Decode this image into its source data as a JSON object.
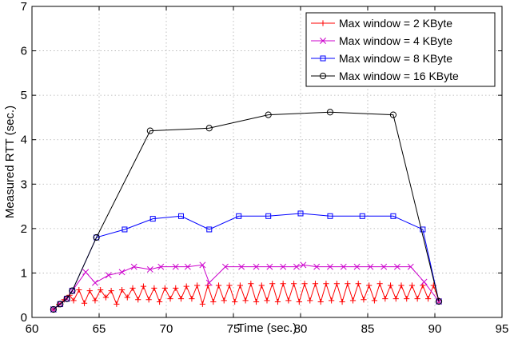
{
  "chart_data": {
    "type": "line",
    "title": "",
    "xlabel": "Time (sec.)",
    "ylabel": "Measured RTT (sec.)",
    "xlim": [
      60,
      95
    ],
    "ylim": [
      0,
      7
    ],
    "xticks": [
      60,
      65,
      70,
      75,
      80,
      85,
      90,
      95
    ],
    "yticks": [
      0,
      1,
      2,
      3,
      4,
      5,
      6,
      7
    ],
    "grid": true,
    "legend_position": "top-right",
    "series": [
      {
        "name": "Max window = 2 KByte",
        "color": "#ff0000",
        "marker": "plus",
        "x": [
          61.6,
          62.0,
          62.4,
          62.8,
          63.1,
          63.5,
          63.9,
          64.3,
          64.7,
          65.1,
          65.5,
          65.9,
          66.3,
          66.7,
          67.1,
          67.5,
          67.9,
          68.3,
          68.7,
          69.1,
          69.5,
          69.9,
          70.3,
          70.7,
          71.1,
          71.5,
          71.9,
          72.3,
          72.7,
          73.1,
          73.5,
          73.9,
          74.3,
          74.7,
          75.1,
          75.5,
          75.9,
          76.3,
          76.7,
          77.1,
          77.5,
          77.9,
          78.3,
          78.7,
          79.1,
          79.5,
          79.9,
          80.3,
          80.7,
          81.1,
          81.5,
          81.9,
          82.3,
          82.7,
          83.1,
          83.5,
          83.9,
          84.3,
          84.7,
          85.1,
          85.5,
          85.9,
          86.3,
          86.7,
          87.1,
          87.5,
          87.9,
          88.3,
          88.7,
          89.1,
          89.5,
          89.9,
          90.3
        ],
        "y": [
          0.18,
          0.29,
          0.4,
          0.5,
          0.38,
          0.62,
          0.32,
          0.6,
          0.38,
          0.62,
          0.45,
          0.6,
          0.3,
          0.62,
          0.45,
          0.66,
          0.4,
          0.7,
          0.4,
          0.66,
          0.35,
          0.66,
          0.42,
          0.66,
          0.42,
          0.7,
          0.42,
          0.72,
          0.3,
          0.72,
          0.35,
          0.72,
          0.38,
          0.72,
          0.35,
          0.72,
          0.38,
          0.76,
          0.35,
          0.72,
          0.38,
          0.76,
          0.35,
          0.76,
          0.38,
          0.76,
          0.35,
          0.76,
          0.38,
          0.76,
          0.35,
          0.76,
          0.38,
          0.76,
          0.35,
          0.76,
          0.38,
          0.76,
          0.4,
          0.72,
          0.38,
          0.76,
          0.42,
          0.72,
          0.42,
          0.72,
          0.42,
          0.72,
          0.42,
          0.72,
          0.42,
          0.72,
          0.38
        ]
      },
      {
        "name": "Max window = 4 KByte",
        "color": "#cc00cc",
        "marker": "x",
        "x": [
          61.6,
          62.1,
          62.6,
          63.0,
          64.0,
          64.7,
          65.7,
          66.7,
          67.6,
          68.8,
          69.6,
          70.7,
          71.6,
          72.7,
          73.2,
          74.4,
          75.6,
          76.7,
          77.7,
          78.7,
          79.7,
          80.2,
          81.2,
          82.2,
          83.2,
          84.2,
          85.2,
          86.2,
          87.2,
          88.2,
          89.2,
          90.3
        ],
        "y": [
          0.18,
          0.3,
          0.42,
          0.6,
          1.02,
          0.78,
          0.95,
          1.02,
          1.14,
          1.08,
          1.14,
          1.14,
          1.14,
          1.18,
          0.78,
          1.14,
          1.14,
          1.14,
          1.14,
          1.14,
          1.14,
          1.18,
          1.14,
          1.14,
          1.14,
          1.14,
          1.14,
          1.14,
          1.14,
          1.14,
          0.8,
          0.36
        ]
      },
      {
        "name": "Max window = 8 KByte",
        "color": "#0000ff",
        "marker": "square",
        "x": [
          61.6,
          62.1,
          62.6,
          63.0,
          64.8,
          66.9,
          69.0,
          71.1,
          73.2,
          75.4,
          77.6,
          80.0,
          82.2,
          84.6,
          86.9,
          89.1,
          90.3
        ],
        "y": [
          0.18,
          0.3,
          0.42,
          0.6,
          1.8,
          1.98,
          2.22,
          2.28,
          1.98,
          2.28,
          2.28,
          2.34,
          2.28,
          2.28,
          2.28,
          1.98,
          0.36
        ]
      },
      {
        "name": "Max window = 16 KByte",
        "color": "#000000",
        "marker": "circle",
        "x": [
          61.6,
          62.1,
          62.6,
          63.0,
          64.8,
          68.8,
          73.2,
          77.6,
          82.2,
          86.9,
          90.3
        ],
        "y": [
          0.18,
          0.3,
          0.42,
          0.6,
          1.8,
          4.2,
          4.26,
          4.56,
          4.62,
          4.56,
          0.36
        ]
      }
    ]
  }
}
